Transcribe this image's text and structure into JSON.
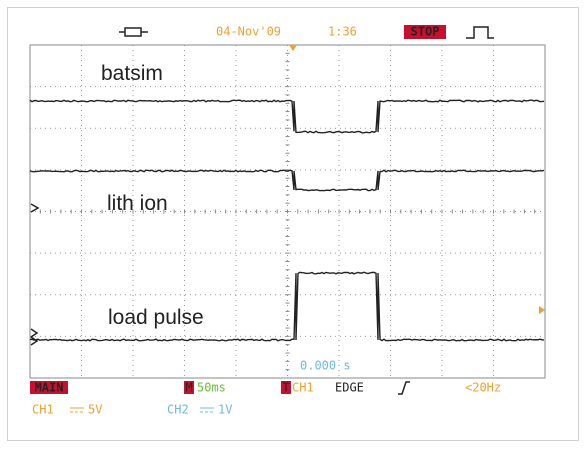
{
  "header": {
    "date": "04-Nov'09",
    "time": "1:36",
    "status": "STOP"
  },
  "traces": [
    {
      "label": "batsim"
    },
    {
      "label": "lith ion"
    },
    {
      "label": "load pulse"
    }
  ],
  "trigger_time": "0.000 s",
  "footer": {
    "mode": "MAIN",
    "timebase_marker": "M",
    "timebase": "50ms",
    "trigger_marker": "T",
    "trigger_source": "CH1",
    "trigger_type": "EDGE",
    "trigger_filter": "<20Hz",
    "channels": [
      {
        "name": "CH1",
        "scale": "5V"
      },
      {
        "name": "CH2",
        "scale": "1V"
      }
    ]
  }
}
